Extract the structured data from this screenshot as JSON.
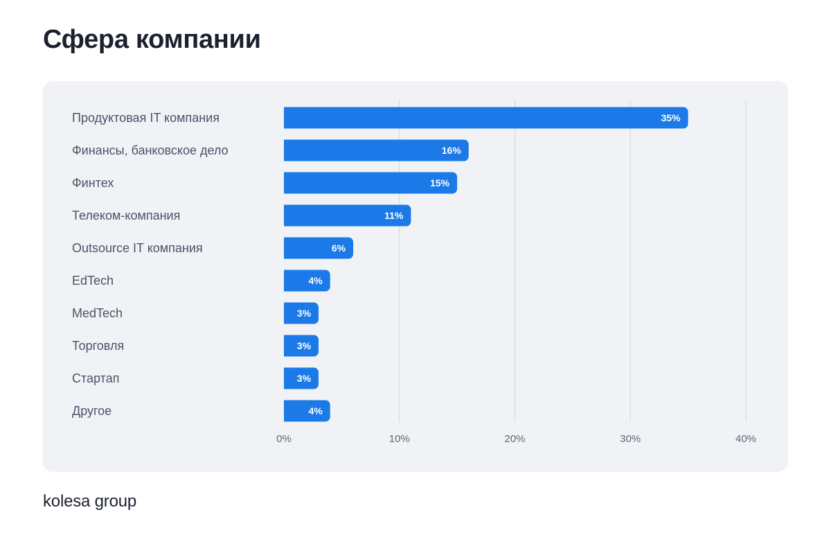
{
  "page": {
    "title": "Сфера компании",
    "brand": "kolesa group"
  },
  "colors": {
    "bar": "#1b7ae8",
    "grid": "#d3d6de",
    "panel": "#f1f2f6"
  },
  "chart_data": {
    "type": "bar",
    "orientation": "horizontal",
    "title": "Сфера компании",
    "categories": [
      "Продуктовая IT компания",
      "Финансы, банковское дело",
      "Финтех",
      "Телеком-компания",
      "Outsource IT компания",
      "EdTech",
      "MedTech",
      "Торговля",
      "Стартап",
      "Другое"
    ],
    "values": [
      35,
      16,
      15,
      11,
      6,
      4,
      3,
      3,
      3,
      4
    ],
    "value_labels": [
      "35%",
      "16%",
      "15%",
      "11%",
      "6%",
      "4%",
      "3%",
      "3%",
      "3%",
      "4%"
    ],
    "xlim": [
      0,
      40
    ],
    "x_ticks": [
      0,
      10,
      20,
      30,
      40
    ],
    "x_tick_labels": [
      "0%",
      "10%",
      "20%",
      "30%",
      "40%"
    ],
    "grid": true,
    "legend": "none"
  }
}
